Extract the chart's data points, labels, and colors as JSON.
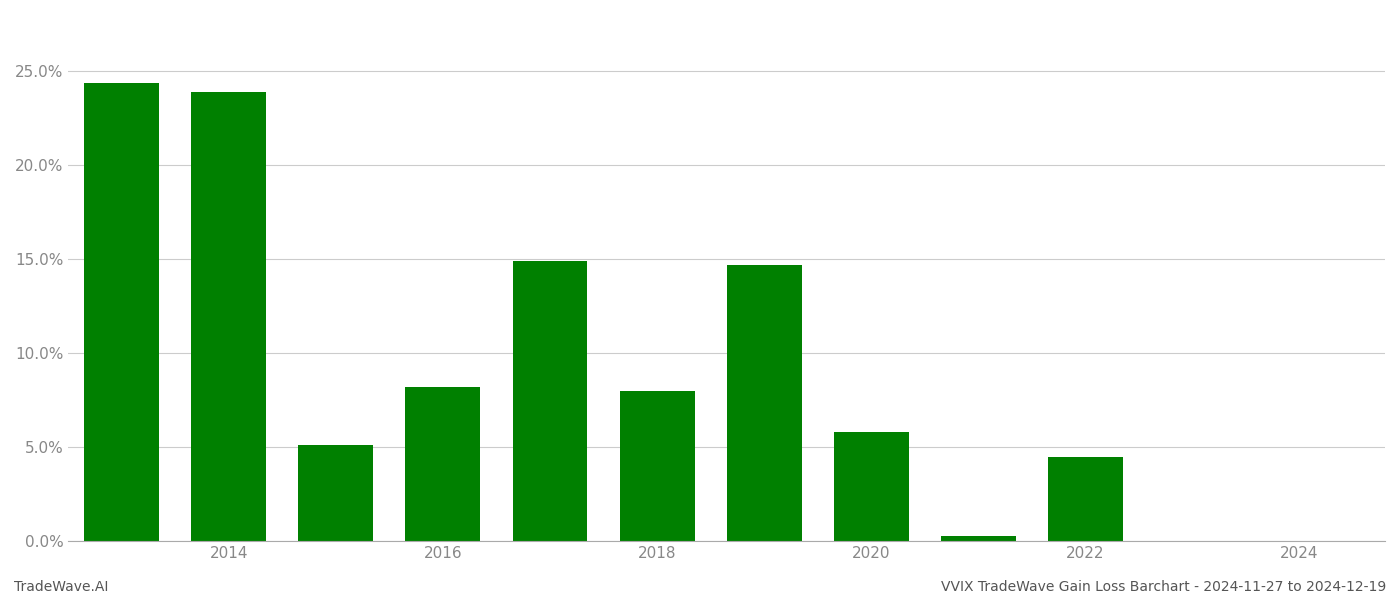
{
  "years": [
    2013,
    2014,
    2015,
    2016,
    2017,
    2018,
    2019,
    2020,
    2021,
    2022,
    2023,
    2024
  ],
  "values": [
    0.244,
    0.239,
    0.051,
    0.082,
    0.149,
    0.08,
    0.147,
    0.058,
    0.003,
    0.045,
    0.0,
    0.0
  ],
  "bar_color": "#008000",
  "background_color": "#ffffff",
  "grid_color": "#cccccc",
  "ylim": [
    0,
    0.28
  ],
  "yticks": [
    0.0,
    0.05,
    0.1,
    0.15,
    0.2,
    0.25
  ],
  "xtick_years": [
    2014,
    2016,
    2018,
    2020,
    2022,
    2024
  ],
  "footer_left": "TradeWave.AI",
  "footer_right": "VVIX TradeWave Gain Loss Barchart - 2024-11-27 to 2024-12-19",
  "footer_fontsize": 10,
  "axis_label_color": "#888888",
  "axis_label_fontsize": 11,
  "bar_width": 0.7
}
